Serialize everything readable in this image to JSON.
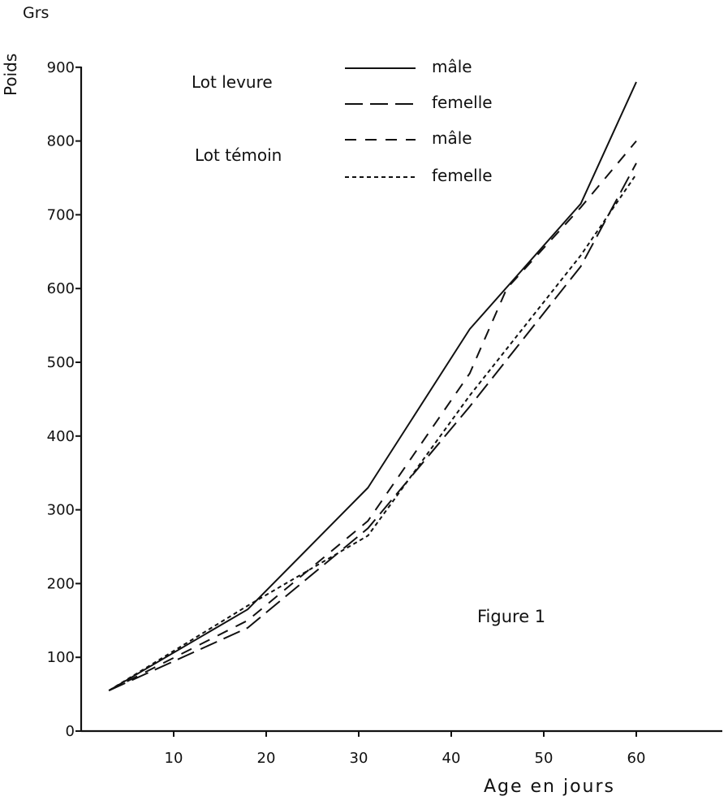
{
  "chart_data": {
    "type": "line",
    "title": "Figure 1",
    "xlabel": "Age en jours",
    "ylabel": "Poids",
    "yunit": "Grs",
    "xlim": [
      0,
      68
    ],
    "ylim": [
      0,
      900
    ],
    "xticks": [
      10,
      20,
      30,
      40,
      50,
      60
    ],
    "yticks": [
      0,
      100,
      200,
      300,
      400,
      500,
      600,
      700,
      800,
      900
    ],
    "grid": false,
    "legend_groups": [
      "Lot levure",
      "Lot témoin"
    ],
    "series": [
      {
        "name": "mâle",
        "group": "Lot levure",
        "style": "solid",
        "x": [
          3,
          18,
          31,
          42,
          54,
          60
        ],
        "y": [
          55,
          165,
          330,
          545,
          715,
          880
        ]
      },
      {
        "name": "femelle",
        "group": "Lot levure",
        "style": "longdash",
        "x": [
          3,
          18,
          31,
          42,
          54,
          60
        ],
        "y": [
          55,
          140,
          275,
          440,
          630,
          770
        ]
      },
      {
        "name": "mâle",
        "group": "Lot témoin",
        "style": "dash",
        "x": [
          3,
          18,
          31,
          42,
          46,
          54,
          60
        ],
        "y": [
          55,
          150,
          285,
          485,
          600,
          710,
          800
        ]
      },
      {
        "name": "femelle",
        "group": "Lot témoin",
        "style": "dot",
        "x": [
          3,
          18,
          31,
          42,
          54,
          60
        ],
        "y": [
          55,
          170,
          265,
          455,
          645,
          755
        ]
      }
    ]
  }
}
